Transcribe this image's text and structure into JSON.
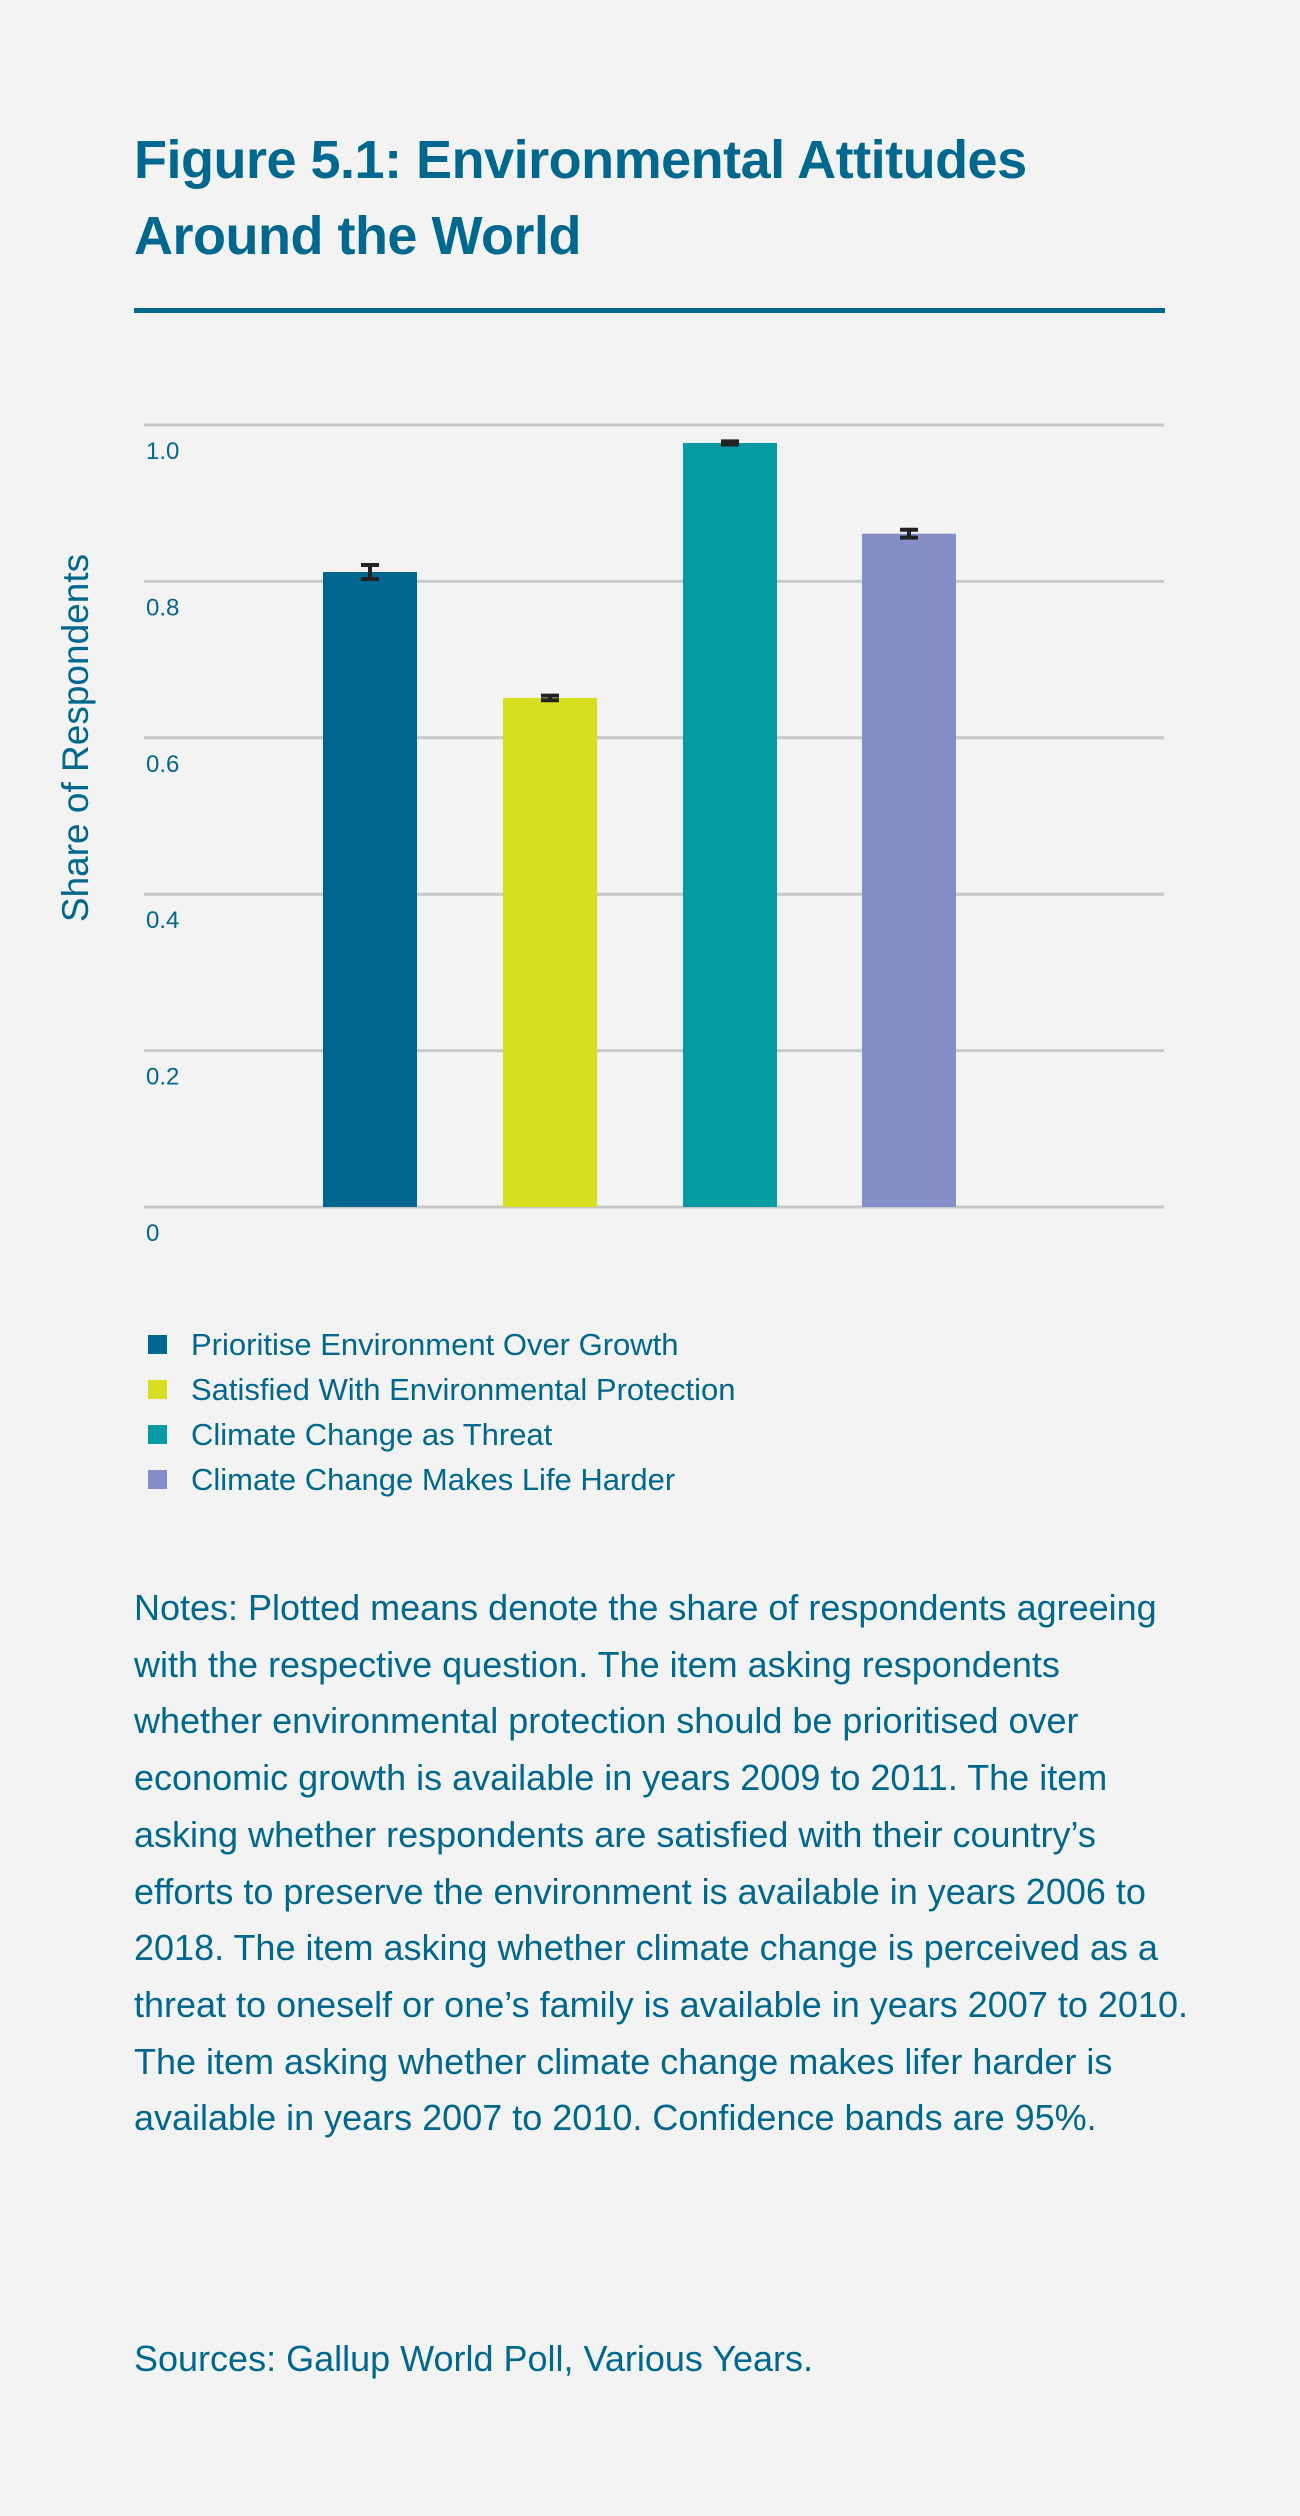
{
  "title": "Figure 5.1: Environmental Attitudes Around the World",
  "colors": {
    "text": "#00678f",
    "background": "#f3f3f3",
    "grid": "#c8c8c8",
    "error_bar": "#222222"
  },
  "chart_data": {
    "type": "bar",
    "title": "Figure 5.1: Environmental Attitudes Around the World",
    "xlabel": "",
    "ylabel": "Share of Respondents",
    "ylim": [
      0,
      1.0
    ],
    "yticks": [
      "0",
      "0.2",
      "0.4",
      "0.6",
      "0.8",
      "1.0"
    ],
    "grid": true,
    "legend_position": "bottom",
    "series": [
      {
        "name": "Prioritise Environment Over Growth",
        "value": 0.812,
        "ci": 0.009,
        "color": "#006890"
      },
      {
        "name": "Satisfied With Environmental Protection",
        "value": 0.651,
        "ci": 0.003,
        "color": "#d8df20"
      },
      {
        "name": "Climate Change as Threat",
        "value": 0.977,
        "ci": 0.002,
        "color": "#059ba3"
      },
      {
        "name": "Climate Change Makes Life Harder",
        "value": 0.861,
        "ci": 0.005,
        "color": "#858ec7"
      }
    ]
  },
  "notes": "Notes: Plotted means denote the share of respondents agreeing with the respective question. The item asking respondents whether environmental protection should be prioritised over economic growth is available in years 2009 to 2011. The item asking whether respondents are satisfied with their country’s efforts to preserve the environment is available in years 2006 to 2018. The item asking whether climate change is perceived as a threat to oneself or one’s family is available in years 2007 to 2010. The item asking whether climate change makes lifer harder is available in years 2007 to 2010. Confidence bands are 95%.",
  "sources": "Sources: Gallup World Poll, Various Years."
}
